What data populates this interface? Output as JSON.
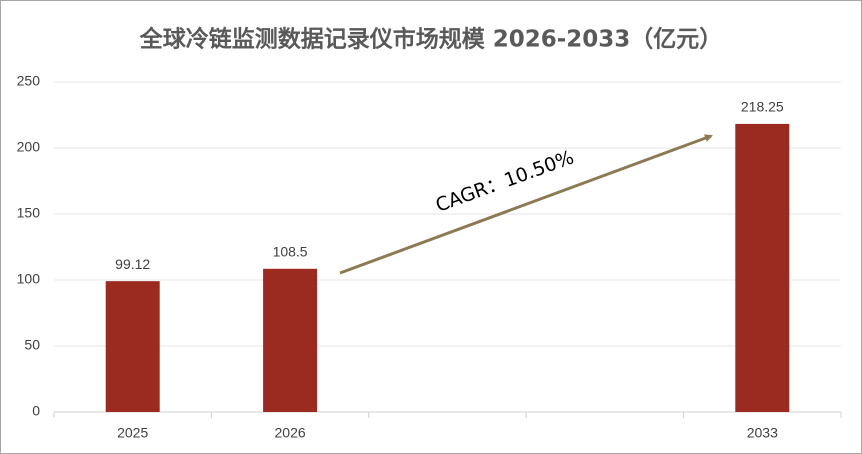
{
  "chart_data": {
    "type": "bar",
    "title": "全球冷链监测数据记录仪市场规模 2026-2033（亿元）",
    "categories": [
      "2025",
      "2026",
      null,
      null,
      "2033"
    ],
    "values": [
      99.12,
      108.5,
      null,
      null,
      218.25
    ],
    "color": "#9b2b20",
    "ylim": [
      0,
      250
    ],
    "yticks": [
      0,
      50,
      100,
      150,
      200,
      250
    ],
    "grid": true,
    "annotation": "CAGR：10.50%"
  }
}
